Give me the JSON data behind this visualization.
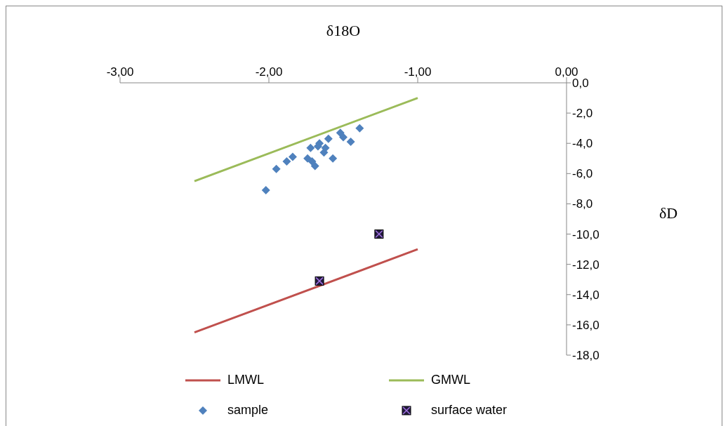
{
  "chart_data": {
    "type": "scatter",
    "xlabel": "δ18O",
    "ylabel": "δD",
    "xlim": [
      -3,
      0
    ],
    "xticks": [
      {
        "value": -3,
        "label": "-3,00"
      },
      {
        "value": -2,
        "label": "-2,00"
      },
      {
        "value": -1,
        "label": "-1,00"
      },
      {
        "value": 0,
        "label": "0,00"
      }
    ],
    "ylim": [
      -18,
      0
    ],
    "yticks": [
      {
        "value": 0,
        "label": "0,0"
      },
      {
        "value": -2,
        "label": "-2,0"
      },
      {
        "value": -4,
        "label": "-4,0"
      },
      {
        "value": -6,
        "label": "-6,0"
      },
      {
        "value": -8,
        "label": "-8,0"
      },
      {
        "value": -10,
        "label": "-10,0"
      },
      {
        "value": -12,
        "label": "-12,0"
      },
      {
        "value": -14,
        "label": "-14,0"
      },
      {
        "value": -16,
        "label": "-16,0"
      },
      {
        "value": -18,
        "label": "-18,0"
      }
    ],
    "grid": false,
    "legend": "bottom",
    "series": [
      {
        "name": "LMWL",
        "type": "line",
        "color": "#c0504d",
        "marker": "none",
        "x": [
          -2.5,
          -1
        ],
        "values": [
          -16.5,
          -11
        ]
      },
      {
        "name": "GMWL",
        "type": "line",
        "color": "#9bbb59",
        "marker": "none",
        "x": [
          -2.5,
          -1
        ],
        "values": [
          -6.5,
          -1
        ]
      },
      {
        "name": "sample",
        "type": "scatter",
        "color": "#4f81bd",
        "marker": "diamond",
        "x": [
          -2.02,
          -1.95,
          -1.88,
          -1.84,
          -1.74,
          -1.71,
          -1.69,
          -1.72,
          -1.66,
          -1.6,
          -1.63,
          -1.57,
          -1.52,
          -1.5,
          -1.45,
          -1.39,
          -1.67,
          -1.62
        ],
        "values": [
          -7.1,
          -5.7,
          -5.2,
          -4.9,
          -5.0,
          -5.2,
          -5.5,
          -4.3,
          -4.0,
          -3.7,
          -4.6,
          -5.0,
          -3.3,
          -3.6,
          -3.9,
          -3.0,
          -4.2,
          -4.3
        ]
      },
      {
        "name": "surface water",
        "type": "scatter",
        "color": "#221a3d",
        "marker": "square",
        "x": [
          -1.26,
          -1.66
        ],
        "values": [
          -10.0,
          -13.1
        ]
      }
    ]
  }
}
